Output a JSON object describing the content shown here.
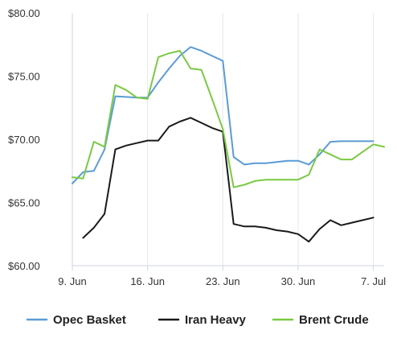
{
  "chart_data": {
    "type": "line",
    "x": [
      "2023-06-09",
      "2023-06-10",
      "2023-06-11",
      "2023-06-12",
      "2023-06-13",
      "2023-06-14",
      "2023-06-15",
      "2023-06-16",
      "2023-06-17",
      "2023-06-18",
      "2023-06-19",
      "2023-06-20",
      "2023-06-21",
      "2023-06-22",
      "2023-06-23",
      "2023-06-24",
      "2023-06-25",
      "2023-06-26",
      "2023-06-27",
      "2023-06-28",
      "2023-06-29",
      "2023-06-30",
      "2023-07-01",
      "2023-07-02",
      "2023-07-03",
      "2023-07-04",
      "2023-07-05",
      "2023-07-06",
      "2023-07-07",
      "2023-07-08"
    ],
    "series": [
      {
        "name": "Opec Basket",
        "color": "#5b9bd5",
        "values": [
          66.5,
          67.4,
          67.5,
          69.2,
          73.4,
          73.35,
          73.3,
          73.3,
          74.5,
          75.6,
          76.6,
          77.3,
          77.0,
          76.6,
          76.2,
          68.6,
          68.0,
          68.1,
          68.1,
          68.2,
          68.3,
          68.3,
          68.0,
          68.8,
          69.8,
          69.85,
          69.85,
          69.85,
          69.85,
          null
        ]
      },
      {
        "name": "Iran Heavy",
        "color": "#1a1a1a",
        "values": [
          null,
          62.2,
          63.0,
          64.1,
          69.2,
          69.5,
          69.7,
          69.9,
          69.9,
          71.0,
          71.4,
          71.7,
          71.3,
          70.9,
          70.6,
          63.3,
          63.1,
          63.1,
          63.0,
          62.8,
          62.7,
          62.5,
          61.9,
          62.9,
          63.6,
          63.2,
          63.4,
          63.6,
          63.8,
          null
        ]
      },
      {
        "name": "Brent Crude",
        "color": "#7ac943",
        "values": [
          67.0,
          66.9,
          69.8,
          69.4,
          74.3,
          73.9,
          73.3,
          73.2,
          76.5,
          76.8,
          77.0,
          75.6,
          75.5,
          73.2,
          70.8,
          66.2,
          66.4,
          66.7,
          66.8,
          66.8,
          66.8,
          66.8,
          67.2,
          69.2,
          68.8,
          68.4,
          68.4,
          69.0,
          69.6,
          69.4
        ]
      }
    ],
    "title": "",
    "xlabel": "",
    "ylabel": "",
    "xlim": [
      "2023-06-09",
      "2023-07-08"
    ],
    "ylim": [
      60,
      80
    ],
    "y_ticks": [
      "$60.00",
      "$65.00",
      "$70.00",
      "$75.00",
      "$80.00"
    ],
    "x_ticks": [
      "9. Jun",
      "16. Jun",
      "23. Jun",
      "30. Jun",
      "7. Jul"
    ],
    "grid": "vertical",
    "legend_position": "bottom"
  }
}
